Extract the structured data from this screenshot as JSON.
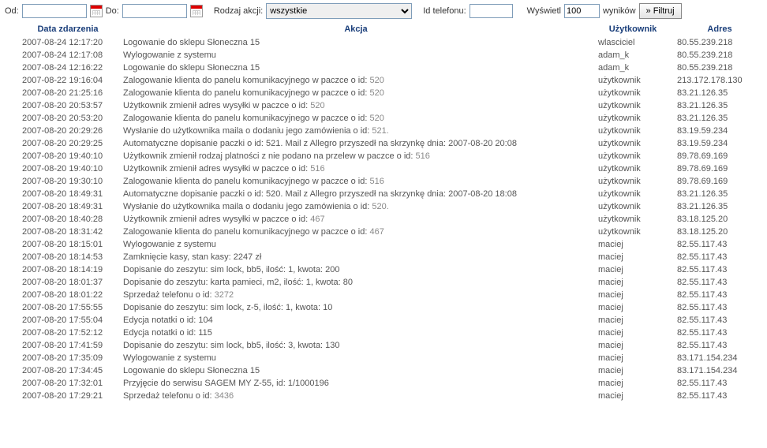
{
  "filter": {
    "od_label": "Od:",
    "od_value": "",
    "do_label": "Do:",
    "do_value": "",
    "rodzaj_label": "Rodzaj akcji:",
    "rodzaj_selected": "wszystkie",
    "id_tel_label": "Id telefonu:",
    "id_tel_value": "",
    "wyswietl_label": "Wyświetl",
    "wyswietl_value": "100",
    "wynikow_label": "wyników",
    "filtruj_label": "» Filtruj"
  },
  "headers": {
    "date": "Data zdarzenia",
    "action": "Akcja",
    "user": "Użytkownik",
    "addr": "Adres"
  },
  "rows": [
    {
      "date": "2007-08-24 12:17:20",
      "action": "Logowanie do sklepu Słoneczna 15",
      "id": "",
      "user": "wlasciciel",
      "addr": "80.55.239.218"
    },
    {
      "date": "2007-08-24 12:17:08",
      "action": "Wylogowanie z systemu",
      "id": "",
      "user": "adam_k",
      "addr": "80.55.239.218"
    },
    {
      "date": "2007-08-24 12:16:22",
      "action": "Logowanie do sklepu Słoneczna 15",
      "id": "",
      "user": "adam_k",
      "addr": "80.55.239.218"
    },
    {
      "date": "2007-08-22 19:16:04",
      "action": "Zalogowanie klienta do panelu komunikacyjnego w paczce o id:",
      "id": "520",
      "user": "użytkownik",
      "addr": "213.172.178.130"
    },
    {
      "date": "2007-08-20 21:25:16",
      "action": "Zalogowanie klienta do panelu komunikacyjnego w paczce o id:",
      "id": "520",
      "user": "użytkownik",
      "addr": "83.21.126.35"
    },
    {
      "date": "2007-08-20 20:53:57",
      "action": "Użytkownik zmienił adres wysyłki w paczce o id:",
      "id": "520",
      "user": "użytkownik",
      "addr": "83.21.126.35"
    },
    {
      "date": "2007-08-20 20:53:20",
      "action": "Zalogowanie klienta do panelu komunikacyjnego w paczce o id:",
      "id": "520",
      "user": "użytkownik",
      "addr": "83.21.126.35"
    },
    {
      "date": "2007-08-20 20:29:26",
      "action": "Wysłanie do użytkownika maila o dodaniu jego zamówienia o id:",
      "id": "521.",
      "user": "użytkownik",
      "addr": "83.19.59.234"
    },
    {
      "date": "2007-08-20 20:29:25",
      "action": "Automatyczne dopisanie paczki o id: 521. Mail z Allegro przyszedł na skrzynkę dnia: 2007-08-20 20:08",
      "id": "",
      "user": "użytkownik",
      "addr": "83.19.59.234"
    },
    {
      "date": "2007-08-20 19:40:10",
      "action": "Użytkownik zmienił rodzaj platności z nie podano na przelew w paczce o id:",
      "id": "516",
      "user": "użytkownik",
      "addr": "89.78.69.169"
    },
    {
      "date": "2007-08-20 19:40:10",
      "action": "Użytkownik zmienił adres wysyłki w paczce o id:",
      "id": "516",
      "user": "użytkownik",
      "addr": "89.78.69.169"
    },
    {
      "date": "2007-08-20 19:30:10",
      "action": "Zalogowanie klienta do panelu komunikacyjnego w paczce o id:",
      "id": "516",
      "user": "użytkownik",
      "addr": "89.78.69.169"
    },
    {
      "date": "2007-08-20 18:49:31",
      "action": "Automatyczne dopisanie paczki o id: 520. Mail z Allegro przyszedł na skrzynkę dnia: 2007-08-20 18:08",
      "id": "",
      "user": "użytkownik",
      "addr": "83.21.126.35"
    },
    {
      "date": "2007-08-20 18:49:31",
      "action": "Wysłanie do użytkownika maila o dodaniu jego zamówienia o id:",
      "id": "520.",
      "user": "użytkownik",
      "addr": "83.21.126.35"
    },
    {
      "date": "2007-08-20 18:40:28",
      "action": "Użytkownik zmienił adres wysyłki w paczce o id:",
      "id": "467",
      "user": "użytkownik",
      "addr": "83.18.125.20"
    },
    {
      "date": "2007-08-20 18:31:42",
      "action": "Zalogowanie klienta do panelu komunikacyjnego w paczce o id:",
      "id": "467",
      "user": "użytkownik",
      "addr": "83.18.125.20"
    },
    {
      "date": "2007-08-20 18:15:01",
      "action": "Wylogowanie z systemu",
      "id": "",
      "user": "maciej",
      "addr": "82.55.117.43"
    },
    {
      "date": "2007-08-20 18:14:53",
      "action": "Zamknięcie kasy, stan kasy: 2247 zł",
      "id": "",
      "user": "maciej",
      "addr": "82.55.117.43"
    },
    {
      "date": "2007-08-20 18:14:19",
      "action": "Dopisanie do zeszytu: sim lock, bb5, ilość: 1, kwota: 200",
      "id": "",
      "user": "maciej",
      "addr": "82.55.117.43"
    },
    {
      "date": "2007-08-20 18:01:37",
      "action": "Dopisanie do zeszytu: karta pamieci, m2, ilość: 1, kwota: 80",
      "id": "",
      "user": "maciej",
      "addr": "82.55.117.43"
    },
    {
      "date": "2007-08-20 18:01:22",
      "action": "Sprzedaż telefonu o id:",
      "id": "3272",
      "user": "maciej",
      "addr": "82.55.117.43"
    },
    {
      "date": "2007-08-20 17:55:55",
      "action": "Dopisanie do zeszytu: sim lock, z-5, ilość: 1, kwota: 10",
      "id": "",
      "user": "maciej",
      "addr": "82.55.117.43"
    },
    {
      "date": "2007-08-20 17:55:04",
      "action": "Edycja notatki o id: 104",
      "id": "",
      "user": "maciej",
      "addr": "82.55.117.43"
    },
    {
      "date": "2007-08-20 17:52:12",
      "action": "Edycja notatki o id: 115",
      "id": "",
      "user": "maciej",
      "addr": "82.55.117.43"
    },
    {
      "date": "2007-08-20 17:41:59",
      "action": "Dopisanie do zeszytu: sim lock, bb5, ilość: 3, kwota: 130",
      "id": "",
      "user": "maciej",
      "addr": "82.55.117.43"
    },
    {
      "date": "2007-08-20 17:35:09",
      "action": "Wylogowanie z systemu",
      "id": "",
      "user": "maciej",
      "addr": "83.171.154.234"
    },
    {
      "date": "2007-08-20 17:34:45",
      "action": "Logowanie do sklepu Słoneczna 15",
      "id": "",
      "user": "maciej",
      "addr": "83.171.154.234"
    },
    {
      "date": "2007-08-20 17:32:01",
      "action": "Przyjęcie do serwisu SAGEM MY Z-55, id: 1/1000196",
      "id": "",
      "user": "maciej",
      "addr": "82.55.117.43"
    },
    {
      "date": "2007-08-20 17:29:21",
      "action": "Sprzedaż telefonu o id:",
      "id": "3436",
      "user": "maciej",
      "addr": "82.55.117.43"
    }
  ]
}
